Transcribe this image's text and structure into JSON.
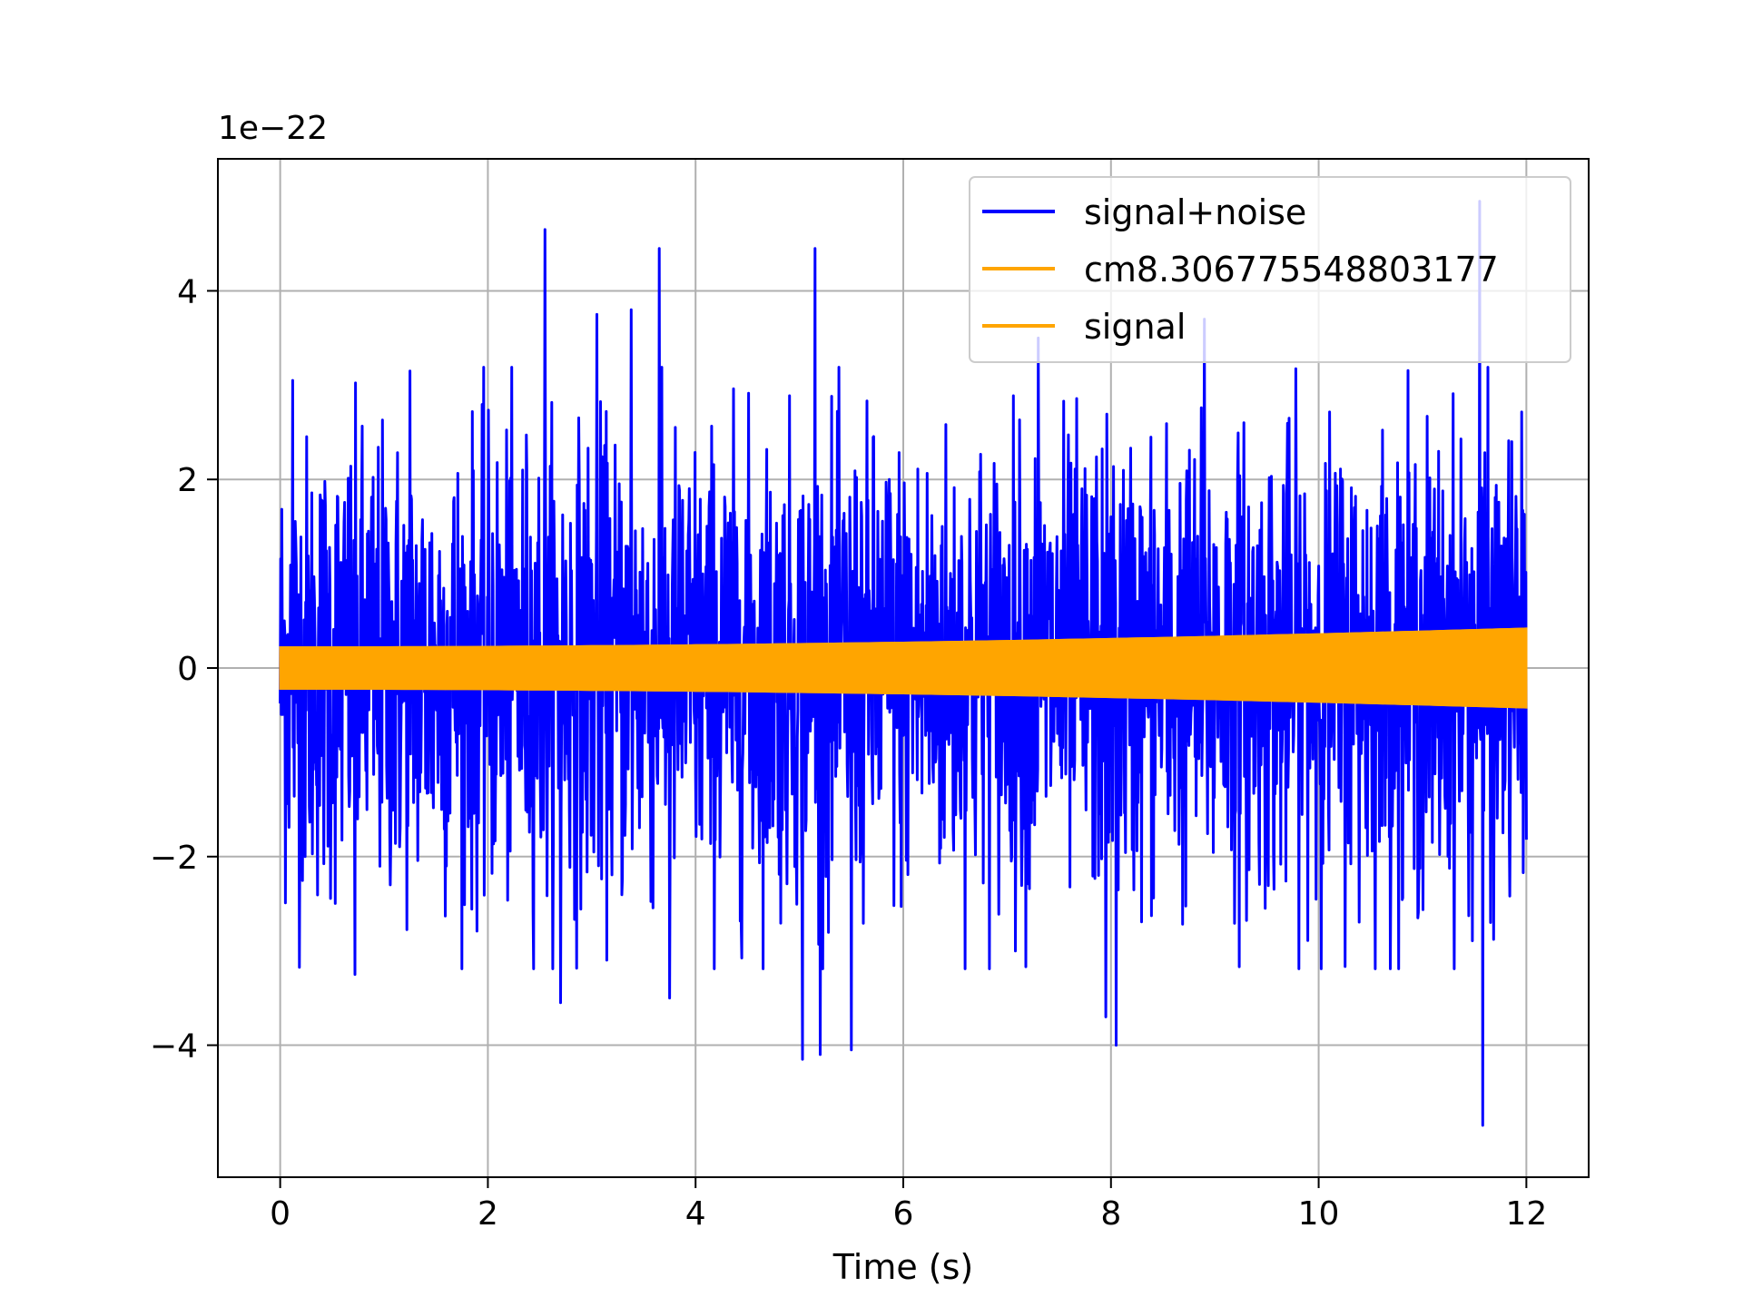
{
  "chart_data": {
    "type": "line",
    "title": "",
    "xlabel": "Time (s)",
    "ylabel": "",
    "y_offset_text": "1e−22",
    "xlim": [
      -0.6,
      12.6
    ],
    "ylim": [
      -5.4,
      5.4
    ],
    "x_ticks": [
      0,
      2,
      4,
      6,
      8,
      10,
      12
    ],
    "x_tick_labels": [
      "0",
      "2",
      "4",
      "6",
      "8",
      "10",
      "12"
    ],
    "y_ticks": [
      -4,
      -2,
      0,
      2,
      4
    ],
    "y_tick_labels": [
      "−4",
      "−2",
      "0",
      "2",
      "4"
    ],
    "grid": true,
    "legend_position": "top-right",
    "colors": {
      "signal_noise": "#0000ff",
      "cm": "#ffa500",
      "signal": "#ffa500",
      "grid": "#b0b0b0"
    },
    "series": [
      {
        "name": "signal+noise",
        "color": "#0000ff",
        "x_range": [
          0,
          12
        ],
        "typical_band": [
          -2.2,
          2.2
        ],
        "max": 4.95,
        "min": -4.85,
        "peaks": [
          {
            "x": 0.12,
            "y": 3.05
          },
          {
            "x": 0.72,
            "y": 3.45
          },
          {
            "x": 1.25,
            "y": 3.15
          },
          {
            "x": 2.55,
            "y": 4.65
          },
          {
            "x": 3.05,
            "y": 3.75
          },
          {
            "x": 3.38,
            "y": 3.8
          },
          {
            "x": 3.65,
            "y": 4.45
          },
          {
            "x": 5.15,
            "y": 4.45
          },
          {
            "x": 7.3,
            "y": 3.5
          },
          {
            "x": 8.9,
            "y": 3.7
          },
          {
            "x": 11.55,
            "y": 4.95
          }
        ],
        "troughs": [
          {
            "x": 0.72,
            "y": -3.25
          },
          {
            "x": 2.7,
            "y": -3.55
          },
          {
            "x": 3.75,
            "y": -3.5
          },
          {
            "x": 5.03,
            "y": -4.15
          },
          {
            "x": 5.2,
            "y": -4.1
          },
          {
            "x": 5.5,
            "y": -4.05
          },
          {
            "x": 7.95,
            "y": -3.7
          },
          {
            "x": 8.05,
            "y": -4.0
          },
          {
            "x": 11.58,
            "y": -4.85
          }
        ]
      },
      {
        "name": "cm8.306775548803177",
        "color": "#ffa500",
        "x_range": [
          0,
          12
        ],
        "envelope_start": 0.22,
        "envelope_end": 0.42
      },
      {
        "name": "signal",
        "color": "#ffa500",
        "x_range": [
          0,
          12
        ],
        "envelope_start": 0.22,
        "envelope_end": 0.42
      }
    ]
  }
}
